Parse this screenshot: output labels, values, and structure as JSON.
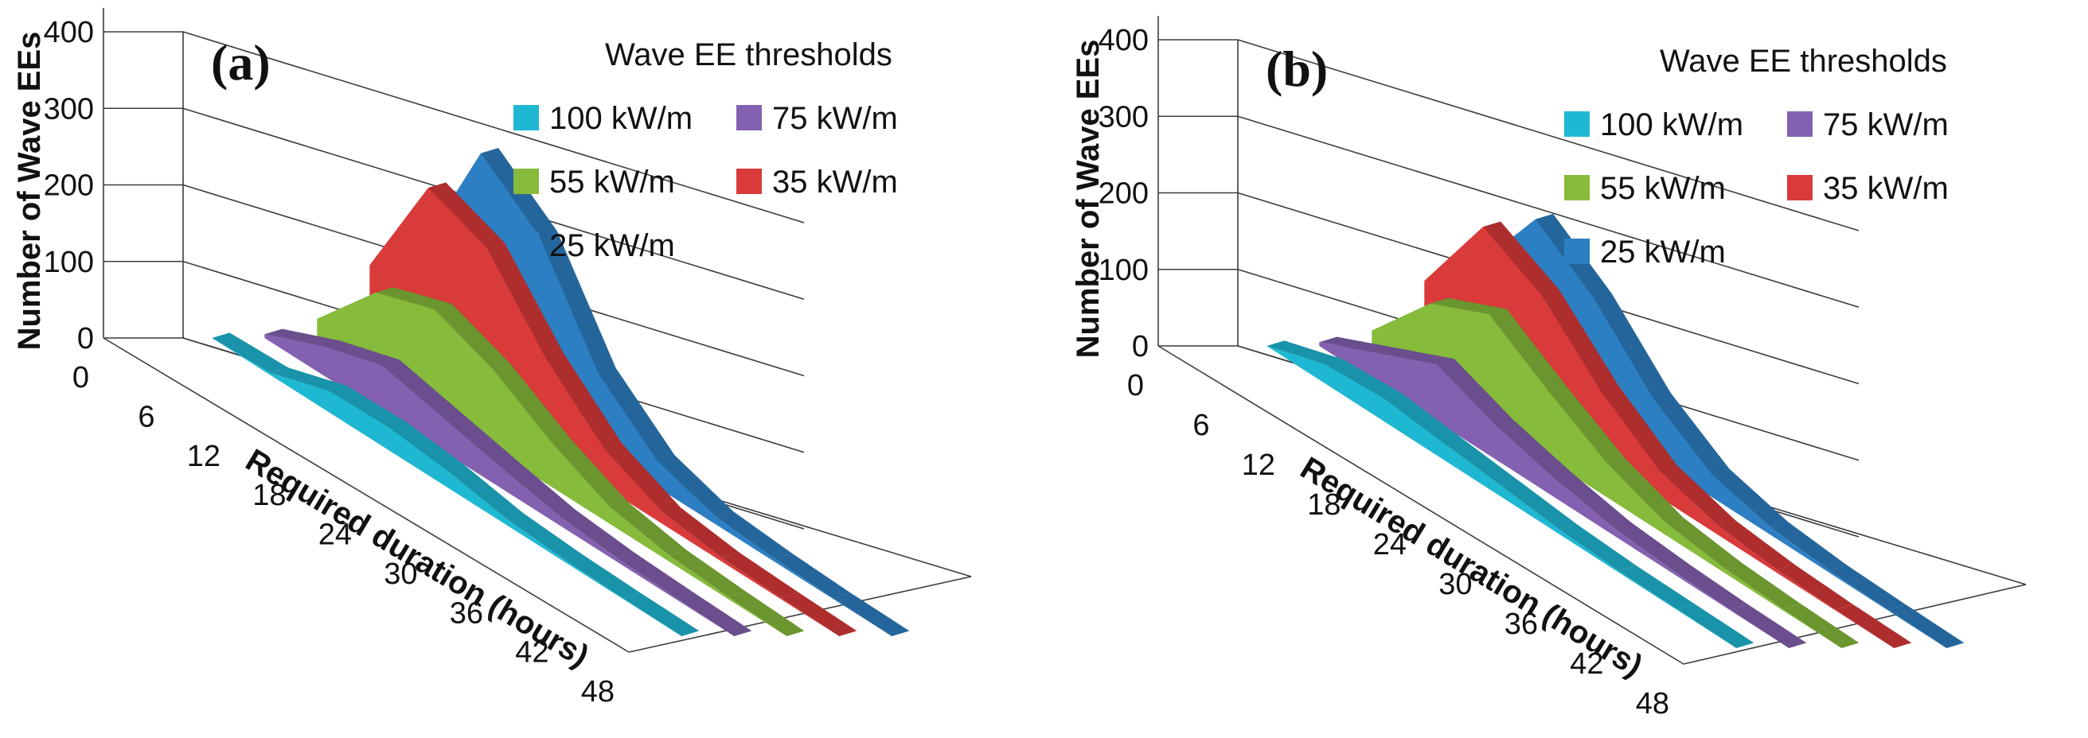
{
  "figure": {
    "panels": [
      "(a)",
      "(b)"
    ]
  },
  "colors": {
    "100 kW/m": "#1fb8d3",
    "75 kW/m": "#8461b0",
    "55 kW/m": "#86bb3b",
    "35 kW/m": "#d93a3a",
    "25 kW/m": "#2d7fc3"
  },
  "chart_data": [
    {
      "type": "area",
      "panel": "(a)",
      "title": "",
      "xlabel": "Required duration (hours)",
      "ylabel": "Number of Wave  EEs",
      "legend_title": "Wave EE thresholds",
      "ylim": [
        0,
        400
      ],
      "yticks": [
        "0",
        "100",
        "200",
        "300",
        "400"
      ],
      "categories": [
        0,
        6,
        12,
        18,
        24,
        30,
        36,
        42,
        48
      ],
      "x_tick_labels": [
        "0",
        "6",
        "12",
        "18",
        "24",
        "30",
        "36",
        "42",
        "48"
      ],
      "series": [
        {
          "name": "100 kW/m",
          "values": [
            0,
            3,
            28,
            30,
            22,
            8,
            3,
            1,
            0
          ]
        },
        {
          "name": "75 kW/m",
          "values": [
            5,
            38,
            62,
            45,
            28,
            12,
            5,
            2,
            0
          ]
        },
        {
          "name": "55 kW/m",
          "values": [
            25,
            108,
            135,
            105,
            58,
            22,
            8,
            3,
            0
          ]
        },
        {
          "name": "35 kW/m",
          "values": [
            95,
            245,
            215,
            120,
            50,
            15,
            5,
            2,
            0
          ]
        },
        {
          "name": "25 kW/m",
          "values": [
            120,
            290,
            230,
            100,
            35,
            10,
            4,
            1,
            0
          ]
        }
      ]
    },
    {
      "type": "area",
      "panel": "(b)",
      "title": "",
      "xlabel": "Required duration (hours)",
      "ylabel": "Number of Wave  EEs",
      "legend_title": "Wave EE thresholds",
      "ylim": [
        0,
        400
      ],
      "yticks": [
        "0",
        "100",
        "200",
        "300",
        "400"
      ],
      "categories": [
        0,
        6,
        12,
        18,
        24,
        30,
        36,
        42,
        48
      ],
      "x_tick_labels": [
        "0",
        "6",
        "12",
        "18",
        "24",
        "30",
        "36",
        "42",
        "48"
      ],
      "series": [
        {
          "name": "100 kW/m",
          "values": [
            0,
            25,
            30,
            22,
            14,
            6,
            2,
            1,
            0
          ]
        },
        {
          "name": "75 kW/m",
          "values": [
            5,
            40,
            75,
            45,
            25,
            10,
            4,
            1,
            0
          ]
        },
        {
          "name": "55 kW/m",
          "values": [
            20,
            105,
            140,
            90,
            45,
            16,
            6,
            2,
            0
          ]
        },
        {
          "name": "35 kW/m",
          "values": [
            85,
            205,
            165,
            90,
            35,
            12,
            4,
            1,
            0
          ]
        },
        {
          "name": "25 kW/m",
          "values": [
            105,
            215,
            160,
            80,
            30,
            10,
            3,
            1,
            0
          ]
        }
      ]
    }
  ]
}
